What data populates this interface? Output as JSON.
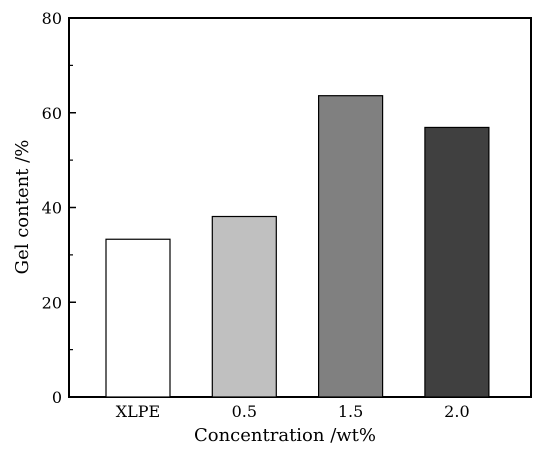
{
  "chart_data": {
    "type": "bar",
    "title": "",
    "xlabel": "Concentration /wt%",
    "ylabel": "Gel content /%",
    "categories": [
      "XLPE",
      "0.5",
      "1.5",
      "2.0"
    ],
    "values": [
      33.3,
      38.1,
      63.6,
      56.9
    ],
    "colors": [
      "#ffffff",
      "#c0c0c0",
      "#808080",
      "#404040"
    ],
    "ylim": [
      0,
      80
    ],
    "yticks": [
      0,
      20,
      40,
      60,
      80
    ],
    "grid": false,
    "legend": "none"
  }
}
